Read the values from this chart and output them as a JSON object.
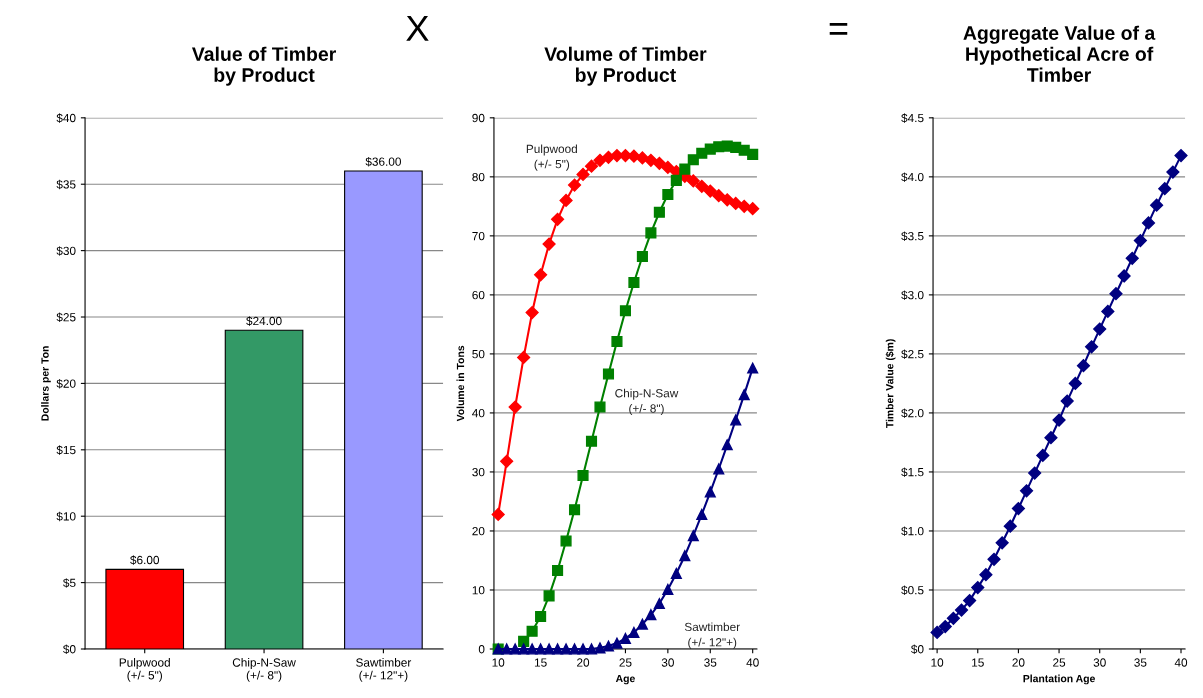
{
  "chart_data": [
    {
      "type": "bar",
      "title": "Value of Timber\nby Product",
      "ylabel": "Dollars per Ton",
      "annotations": [
        "X"
      ],
      "categories": [
        "Pulpwood\n(+/- 5\")",
        "Chip-N-Saw\n(+/- 8\")",
        "Sawtimber\n(+/- 12\"+)"
      ],
      "values": [
        6,
        24,
        36
      ],
      "colors": [
        "#ff0000",
        "#339966",
        "#9999ff"
      ],
      "value_labels": [
        "$6.00",
        "$24.00",
        "$36.00"
      ],
      "ylim": [
        0,
        40
      ],
      "yticks": [
        {
          "value": 0,
          "label": "$0"
        },
        {
          "value": 5,
          "label": "$5"
        },
        {
          "value": 10,
          "label": "$10"
        },
        {
          "value": 15,
          "label": "$15"
        },
        {
          "value": 20,
          "label": "$20"
        },
        {
          "value": 25,
          "label": "$25"
        },
        {
          "value": 30,
          "label": "$30"
        },
        {
          "value": 35,
          "label": "$35"
        },
        {
          "value": 40,
          "label": "$40"
        }
      ],
      "grid": "y",
      "legend": false
    },
    {
      "type": "line",
      "title": "Volume of Timber\nby Product",
      "xlabel": "Age",
      "ylabel": "Volume in Tons",
      "annotations": [
        "="
      ],
      "x": [
        10,
        11,
        12,
        13,
        14,
        15,
        16,
        17,
        18,
        19,
        20,
        21,
        22,
        23,
        24,
        25,
        26,
        27,
        28,
        29,
        30,
        31,
        32,
        33,
        34,
        35,
        36,
        37,
        38,
        39,
        40
      ],
      "series": [
        {
          "name": "Pulpwood\n(+/- 5\")",
          "color": "#ff0000",
          "marker": "diamond",
          "values": [
            22.8,
            31.8,
            41,
            49.4,
            57,
            63.4,
            68.6,
            72.8,
            76,
            78.6,
            80.4,
            81.8,
            82.8,
            83.3,
            83.6,
            83.6,
            83.5,
            83.2,
            82.8,
            82.3,
            81.6,
            80.9,
            80.1,
            79.3,
            78.4,
            77.6,
            76.8,
            76.1,
            75.5,
            75.0,
            74.6
          ]
        },
        {
          "name": "Chip-N-Saw\n(+/- 8\")",
          "color": "#008000",
          "marker": "square",
          "values": [
            0,
            null,
            null,
            1.3,
            3,
            5.5,
            9,
            13.3,
            18.3,
            23.6,
            29.4,
            35.2,
            41,
            46.6,
            52.1,
            57.3,
            62.1,
            66.5,
            70.5,
            74,
            77,
            79.4,
            81.3,
            82.9,
            84.0,
            84.7,
            85.1,
            85.2,
            85.0,
            84.5,
            83.8
          ]
        },
        {
          "name": "Sawtimber\n(+/- 12\"+)",
          "color": "#000080",
          "marker": "triangle",
          "values": [
            0,
            0,
            0,
            0,
            0,
            0,
            0,
            0,
            0,
            0,
            0,
            0,
            0.2,
            0.5,
            1.0,
            1.8,
            2.8,
            4.2,
            5.8,
            7.7,
            10.1,
            12.8,
            15.8,
            19.2,
            22.8,
            26.6,
            30.5,
            34.6,
            38.8,
            43.1,
            47.6
          ]
        }
      ],
      "xlim": [
        9.5,
        40.5
      ],
      "xticks": [
        10,
        15,
        20,
        25,
        30,
        35,
        40
      ],
      "ylim": [
        0,
        90
      ],
      "yticks": [
        0,
        10,
        20,
        30,
        40,
        50,
        60,
        70,
        80,
        90
      ],
      "grid": "y",
      "legend": false,
      "line_style": "solid"
    },
    {
      "type": "line",
      "title": "Aggregate Value of a\nHypothetical Acre of\nTimber",
      "xlabel": "Plantation Age",
      "ylabel": "Timber Value ($m)",
      "x": [
        10,
        11,
        12,
        13,
        14,
        15,
        16,
        17,
        18,
        19,
        20,
        21,
        22,
        23,
        24,
        25,
        26,
        27,
        28,
        29,
        30,
        31,
        32,
        33,
        34,
        35,
        36,
        37,
        38,
        39,
        40
      ],
      "series": [
        {
          "color": "#000080",
          "marker": "diamond",
          "values": [
            0.14,
            0.19,
            0.26,
            0.33,
            0.41,
            0.52,
            0.63,
            0.76,
            0.9,
            1.04,
            1.19,
            1.34,
            1.49,
            1.64,
            1.79,
            1.94,
            2.1,
            2.25,
            2.4,
            2.56,
            2.71,
            2.86,
            3.01,
            3.16,
            3.31,
            3.46,
            3.61,
            3.76,
            3.9,
            4.04,
            4.18
          ]
        }
      ],
      "xlim": [
        9.5,
        40.5
      ],
      "xticks": [
        10,
        15,
        20,
        25,
        30,
        35,
        40
      ],
      "ylim": [
        0,
        4.5
      ],
      "yticks": [
        {
          "value": 0,
          "label": "$0"
        },
        {
          "value": 0.5,
          "label": "$0.5"
        },
        {
          "value": 1,
          "label": "$1.0"
        },
        {
          "value": 1.5,
          "label": "$1.5"
        },
        {
          "value": 2,
          "label": "$2.0"
        },
        {
          "value": 2.5,
          "label": "$2.5"
        },
        {
          "value": 3,
          "label": "$3.0"
        },
        {
          "value": 3.5,
          "label": "$3.5"
        },
        {
          "value": 4,
          "label": "$4.0"
        },
        {
          "value": 4.5,
          "label": "$4.5"
        }
      ],
      "grid": "y",
      "legend": false,
      "line_style": "solid"
    }
  ]
}
